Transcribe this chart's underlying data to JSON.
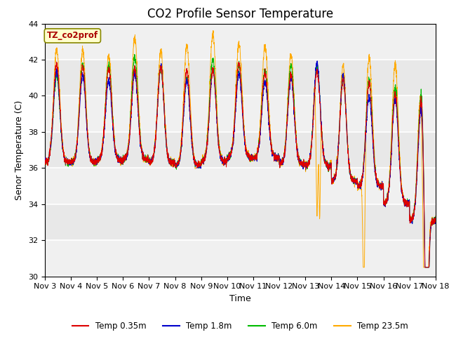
{
  "title": "CO2 Profile Sensor Temperature",
  "xlabel": "Time",
  "ylabel": "Senor Temperature (C)",
  "ylim": [
    30,
    44
  ],
  "yticks": [
    30,
    32,
    34,
    36,
    38,
    40,
    42,
    44
  ],
  "xtick_labels": [
    "Nov 3",
    "Nov 4",
    "Nov 5",
    "Nov 6",
    "Nov 7",
    "Nov 8",
    "Nov 9",
    "Nov 10",
    "Nov 11",
    "Nov 12",
    "Nov 13",
    "Nov 14",
    "Nov 15",
    "Nov 16",
    "Nov 17",
    "Nov 18"
  ],
  "legend_labels": [
    "Temp 0.35m",
    "Temp 1.8m",
    "Temp 6.0m",
    "Temp 23.5m"
  ],
  "legend_colors": [
    "#dd0000",
    "#0000cc",
    "#00bb00",
    "#ffaa00"
  ],
  "annotation_text": "TZ_co2prof",
  "annotation_box_color": "#ffffcc",
  "annotation_text_color": "#aa0000",
  "background_color": "#ffffff",
  "plot_bg_color": "#e8e8e8",
  "grid_color": "#ffffff",
  "band_colors": [
    "#d8d8d8",
    "#e8e8e8"
  ],
  "title_fontsize": 12,
  "axis_label_fontsize": 9,
  "tick_fontsize": 8
}
